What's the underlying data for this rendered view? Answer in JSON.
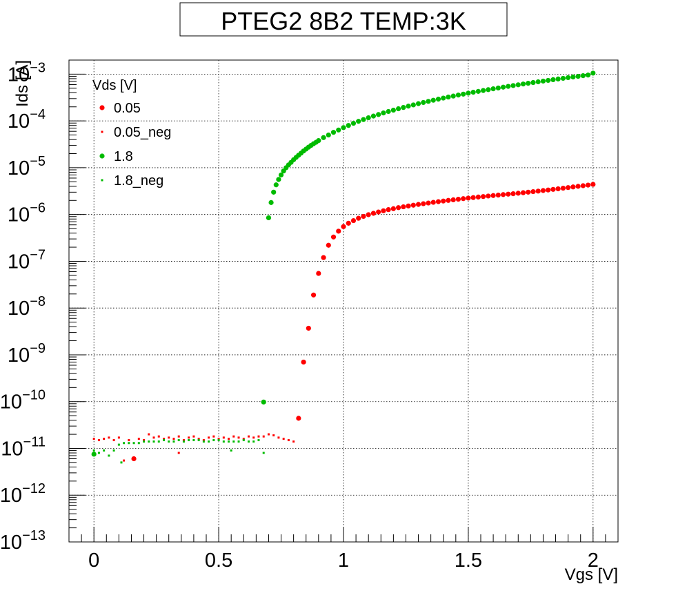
{
  "chart_data": {
    "type": "scatter",
    "title": "PTEG2 8B2 TEMP:3K",
    "xlabel": "Vgs [V]",
    "ylabel": "Ids [A]",
    "xlim": [
      -0.1,
      2.1
    ],
    "ylim": [
      1e-13,
      0.002
    ],
    "y_scale": "log",
    "grid": true,
    "x_ticks": [
      {
        "value": 0,
        "label": "0"
      },
      {
        "value": 0.5,
        "label": "0.5"
      },
      {
        "value": 1,
        "label": "1"
      },
      {
        "value": 1.5,
        "label": "1.5"
      },
      {
        "value": 2,
        "label": "2"
      }
    ],
    "y_ticks": [
      {
        "exp": -13,
        "base": "10",
        "sup": "−13"
      },
      {
        "exp": -12,
        "base": "10",
        "sup": "−12"
      },
      {
        "exp": -11,
        "base": "10",
        "sup": "−11"
      },
      {
        "exp": -10,
        "base": "10",
        "sup": "−10"
      },
      {
        "exp": -9,
        "base": "10",
        "sup": "−9"
      },
      {
        "exp": -8,
        "base": "10",
        "sup": "−8"
      },
      {
        "exp": -7,
        "base": "10",
        "sup": "−7"
      },
      {
        "exp": -6,
        "base": "10",
        "sup": "−6"
      },
      {
        "exp": -5,
        "base": "10",
        "sup": "−5"
      },
      {
        "exp": -4,
        "base": "10",
        "sup": "−4"
      },
      {
        "exp": -3,
        "base": "10",
        "sup": "−3"
      }
    ],
    "legend": {
      "title": "Vds [V]",
      "position": "top-left",
      "entries": [
        "0.05",
        "0.05_neg",
        "1.8",
        "1.8_neg"
      ]
    },
    "series": [
      {
        "name": "0.05",
        "color": "#ff0000",
        "marker": "circle",
        "x": [
          0.16,
          0.82,
          0.84,
          0.86,
          0.88,
          0.9,
          0.92,
          0.94,
          0.96,
          0.98,
          1.0,
          1.02,
          1.04,
          1.06,
          1.08,
          1.1,
          1.12,
          1.14,
          1.16,
          1.18,
          1.2,
          1.22,
          1.24,
          1.26,
          1.28,
          1.3,
          1.32,
          1.34,
          1.36,
          1.38,
          1.4,
          1.42,
          1.44,
          1.46,
          1.48,
          1.5,
          1.52,
          1.54,
          1.56,
          1.58,
          1.6,
          1.62,
          1.64,
          1.66,
          1.68,
          1.7,
          1.72,
          1.74,
          1.76,
          1.78,
          1.8,
          1.82,
          1.84,
          1.86,
          1.88,
          1.9,
          1.92,
          1.94,
          1.96,
          1.98,
          2.0
        ],
        "y": [
          6e-12,
          4.4e-11,
          7e-10,
          3.7e-09,
          1.9e-08,
          5.5e-08,
          1.2e-07,
          2.2e-07,
          3.3e-07,
          4.4e-07,
          5.5e-07,
          6.5e-07,
          7.4e-07,
          8.3e-07,
          9.1e-07,
          9.9e-07,
          1.06e-06,
          1.13e-06,
          1.2e-06,
          1.27e-06,
          1.33e-06,
          1.4e-06,
          1.46e-06,
          1.52e-06,
          1.58e-06,
          1.64e-06,
          1.7e-06,
          1.76e-06,
          1.82e-06,
          1.88e-06,
          1.94e-06,
          2e-06,
          2.06e-06,
          2.12e-06,
          2.18e-06,
          2.24e-06,
          2.3e-06,
          2.36e-06,
          2.42e-06,
          2.48e-06,
          2.54e-06,
          2.6e-06,
          2.66e-06,
          2.72e-06,
          2.78e-06,
          2.85e-06,
          2.92e-06,
          3e-06,
          3.08e-06,
          3.16e-06,
          3.25e-06,
          3.34e-06,
          3.44e-06,
          3.54e-06,
          3.65e-06,
          3.76e-06,
          3.88e-06,
          4e-06,
          4.12e-06,
          4.25e-06,
          4.4e-06
        ]
      },
      {
        "name": "0.05_neg",
        "color": "#ff0000",
        "marker": "square",
        "x": [
          0.0,
          0.02,
          0.04,
          0.06,
          0.08,
          0.1,
          0.12,
          0.14,
          0.16,
          0.18,
          0.2,
          0.22,
          0.24,
          0.26,
          0.28,
          0.3,
          0.32,
          0.34,
          0.36,
          0.38,
          0.4,
          0.42,
          0.44,
          0.46,
          0.48,
          0.5,
          0.52,
          0.54,
          0.56,
          0.58,
          0.6,
          0.62,
          0.64,
          0.66,
          0.68,
          0.7,
          0.72,
          0.74,
          0.76,
          0.78,
          0.8,
          0.34
        ],
        "y": [
          1.6e-11,
          1.5e-11,
          1.6e-11,
          1.7e-11,
          1.5e-11,
          1.7e-11,
          5.5e-12,
          1.5e-11,
          6e-12,
          1.6e-11,
          1.5e-11,
          2e-11,
          1.7e-11,
          1.8e-11,
          1.6e-11,
          1.7e-11,
          1.6e-11,
          1.8e-11,
          1.5e-11,
          1.7e-11,
          1.8e-11,
          1.6e-11,
          1.5e-11,
          1.7e-11,
          1.8e-11,
          1.6e-11,
          1.7e-11,
          1.6e-11,
          1.8e-11,
          1.7e-11,
          1.6e-11,
          1.8e-11,
          1.7e-11,
          1.8e-11,
          1.8e-11,
          2e-11,
          1.9e-11,
          1.7e-11,
          1.6e-11,
          1.5e-11,
          1.4e-11,
          8e-12
        ]
      },
      {
        "name": "1.8",
        "color": "#00bb00",
        "marker": "circle",
        "x": [
          0.0,
          0.68,
          0.7,
          0.71,
          0.72,
          0.73,
          0.74,
          0.75,
          0.76,
          0.77,
          0.78,
          0.79,
          0.8,
          0.81,
          0.82,
          0.83,
          0.84,
          0.85,
          0.86,
          0.87,
          0.88,
          0.89,
          0.9,
          0.92,
          0.94,
          0.96,
          0.98,
          1.0,
          1.02,
          1.04,
          1.06,
          1.08,
          1.1,
          1.12,
          1.14,
          1.16,
          1.18,
          1.2,
          1.22,
          1.24,
          1.26,
          1.28,
          1.3,
          1.32,
          1.34,
          1.36,
          1.38,
          1.4,
          1.42,
          1.44,
          1.46,
          1.48,
          1.5,
          1.52,
          1.54,
          1.56,
          1.58,
          1.6,
          1.62,
          1.64,
          1.66,
          1.68,
          1.7,
          1.72,
          1.74,
          1.76,
          1.78,
          1.8,
          1.82,
          1.84,
          1.86,
          1.88,
          1.9,
          1.92,
          1.94,
          1.96,
          1.98,
          2.0
        ],
        "y": [
          7.5e-12,
          9.8e-11,
          8.5e-07,
          1.8e-06,
          3e-06,
          4.3e-06,
          5.6e-06,
          7e-06,
          8.5e-06,
          1e-05,
          1.15e-05,
          1.3e-05,
          1.48e-05,
          1.66e-05,
          1.85e-05,
          2.05e-05,
          2.28e-05,
          2.5e-05,
          2.75e-05,
          3e-05,
          3.25e-05,
          3.5e-05,
          3.8e-05,
          4.4e-05,
          5e-05,
          5.7e-05,
          6.4e-05,
          7.2e-05,
          8e-05,
          8.9e-05,
          9.8e-05,
          0.000107,
          0.000117,
          0.000127,
          0.000137,
          0.000148,
          0.000159,
          0.00017,
          0.000182,
          0.000194,
          0.000207,
          0.00022,
          0.000234,
          0.000248,
          0.000262,
          0.000277,
          0.000292,
          0.000308,
          0.000324,
          0.00034,
          0.000357,
          0.000374,
          0.000392,
          0.00041,
          0.000428,
          0.000447,
          0.000466,
          0.000486,
          0.000506,
          0.000527,
          0.000548,
          0.00057,
          0.000592,
          0.000615,
          0.000638,
          0.000662,
          0.000686,
          0.000711,
          0.000736,
          0.000762,
          0.000788,
          0.000815,
          0.000842,
          0.00087,
          0.000898,
          0.000927,
          0.000956,
          0.00105
        ]
      },
      {
        "name": "1.8_neg",
        "color": "#00bb00",
        "marker": "square",
        "x": [
          0.0,
          0.02,
          0.04,
          0.06,
          0.08,
          0.1,
          0.11,
          0.12,
          0.14,
          0.16,
          0.18,
          0.2,
          0.22,
          0.24,
          0.26,
          0.28,
          0.3,
          0.32,
          0.34,
          0.36,
          0.38,
          0.4,
          0.42,
          0.44,
          0.46,
          0.48,
          0.5,
          0.52,
          0.54,
          0.55,
          0.56,
          0.58,
          0.6,
          0.62,
          0.64,
          0.66,
          0.68
        ],
        "y": [
          9e-12,
          8e-12,
          9e-12,
          7e-12,
          9e-12,
          1.2e-11,
          5e-12,
          1.3e-11,
          1.3e-11,
          1.3e-11,
          1.3e-11,
          1.4e-11,
          1.4e-11,
          1.4e-11,
          1.4e-11,
          1.5e-11,
          1.4e-11,
          1.4e-11,
          1.5e-11,
          1.4e-11,
          1.5e-11,
          1.5e-11,
          1.5e-11,
          1.4e-11,
          1.4e-11,
          1.5e-11,
          1.5e-11,
          1.4e-11,
          1.4e-11,
          9e-12,
          1.4e-11,
          1.4e-11,
          1.5e-11,
          1.4e-11,
          1.4e-11,
          1.5e-11,
          8e-12
        ]
      }
    ]
  }
}
